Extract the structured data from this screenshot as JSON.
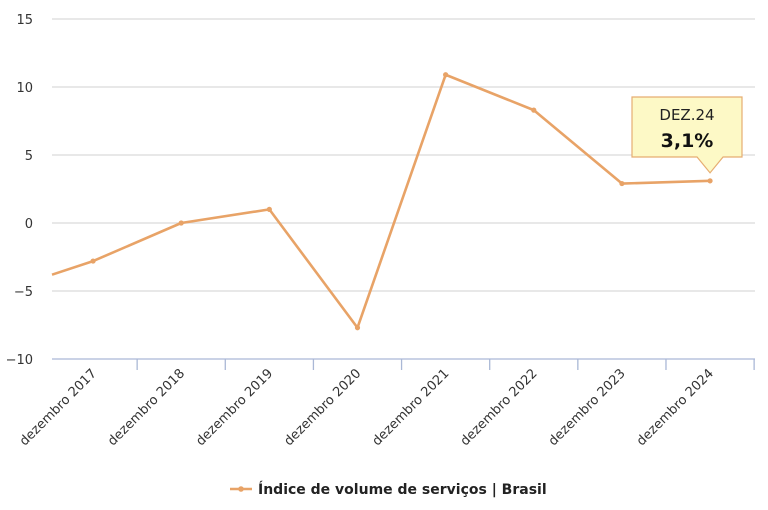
{
  "chart_data": {
    "type": "line",
    "title": "",
    "xlabel": "",
    "ylabel": "",
    "categories": [
      "dezembro 2017",
      "dezembro 2018",
      "dezembro 2019",
      "dezembro 2020",
      "dezembro 2021",
      "dezembro 2022",
      "dezembro 2023",
      "dezembro 2024"
    ],
    "series": [
      {
        "name": "Índice de volume de serviços | Brasil",
        "color": "#e8a367",
        "values": [
          -2.8,
          0.0,
          1.0,
          -7.7,
          10.9,
          8.3,
          2.9,
          3.1
        ],
        "left_clip_value": -3.8
      }
    ],
    "yticks": [
      "15",
      "10",
      "5",
      "0",
      "−5",
      "−10"
    ],
    "ylim": [
      -10,
      15
    ],
    "grid": true,
    "legend_position": "bottom-center",
    "tooltip": {
      "category": "dezembro 2024",
      "label": "DEZ.24",
      "value": "3,1%"
    }
  },
  "colors": {
    "series": "#e8a367",
    "grid": "#d9d9d9",
    "axis": "#aab8d6",
    "tooltip_bg": "#fdf9c6",
    "tooltip_border": "#e6ad72"
  }
}
